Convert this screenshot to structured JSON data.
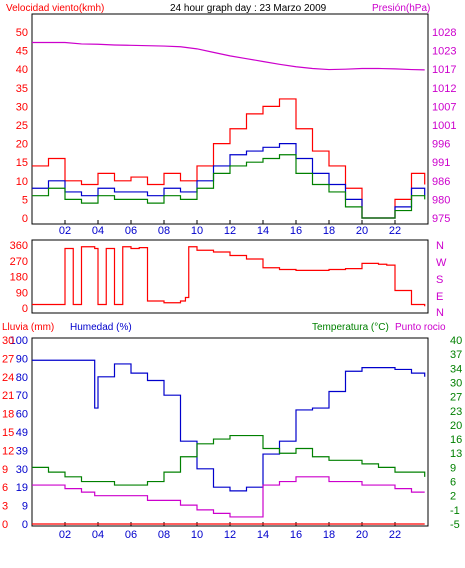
{
  "header": {
    "left_label": "Velocidad viento(kmh)",
    "center_title": "24 hour graph day : 23 Marzo 2009",
    "right_label": "Presión(hPa)"
  },
  "panel2": {
    "dir_labels": [
      "N",
      "W",
      "S",
      "E",
      "N"
    ]
  },
  "panel3": {
    "label_rain": "Lluvia (mm)",
    "label_humidity": "Humedad (%)",
    "label_temp": "Temperatura (°C)",
    "label_dew": "Punto rocio"
  },
  "colors": {
    "wind": "#ff0000",
    "wind_avg": "#0000cc",
    "wind_low": "#008000",
    "pressure": "#cc00cc",
    "direction": "#ff0000",
    "humidity": "#0000cc",
    "temperature": "#008000",
    "dewpoint": "#cc00cc",
    "rain": "#ff0000"
  },
  "chart_data": [
    {
      "type": "line",
      "title": "24 hour graph day : 23 Marzo 2009",
      "xlabel": "",
      "ylabel": "Velocidad viento(kmh)",
      "ylabel_right": "Presión(hPa)",
      "x_ticks": [
        "02",
        "04",
        "06",
        "08",
        "10",
        "12",
        "14",
        "16",
        "18",
        "20",
        "22"
      ],
      "xlim": [
        0,
        24
      ],
      "ylim": [
        0,
        50
      ],
      "y_ticks": [
        0,
        5,
        10,
        15,
        20,
        25,
        30,
        35,
        40,
        45,
        50
      ],
      "y2_ticks": [
        975,
        980,
        986,
        991,
        996,
        1001,
        1007,
        1012,
        1017,
        1023,
        1028
      ],
      "x": [
        0,
        1,
        2,
        3,
        4,
        5,
        6,
        7,
        8,
        9,
        10,
        11,
        12,
        13,
        14,
        15,
        16,
        17,
        18,
        19,
        20,
        21,
        22,
        23,
        23.8
      ],
      "series": [
        {
          "name": "gust",
          "axis": "left",
          "values": [
            14,
            16,
            10,
            9,
            12,
            10,
            11,
            9,
            12,
            10,
            14,
            20,
            24,
            28,
            30,
            32,
            24,
            18,
            14,
            8,
            0,
            0,
            5,
            12,
            9
          ]
        },
        {
          "name": "average",
          "axis": "left",
          "values": [
            8,
            10,
            7,
            6,
            8,
            7,
            7,
            6,
            8,
            7,
            10,
            14,
            17,
            18,
            19,
            20,
            16,
            12,
            9,
            5,
            0,
            0,
            3,
            8,
            6
          ]
        },
        {
          "name": "low",
          "axis": "left",
          "values": [
            6,
            8,
            5,
            4,
            6,
            5,
            5,
            4,
            6,
            5,
            8,
            12,
            14,
            15,
            16,
            17,
            12,
            9,
            7,
            3,
            0,
            0,
            2,
            6,
            5
          ]
        },
        {
          "name": "pressure",
          "axis": "right",
          "values": [
            1025,
            1025,
            1025,
            1024.6,
            1024.5,
            1024.3,
            1024.2,
            1024.1,
            1024,
            1023.8,
            1023.2,
            1022.2,
            1021.2,
            1020.4,
            1019.6,
            1018.8,
            1018.1,
            1017.6,
            1017.3,
            1017.4,
            1017.6,
            1017.6,
            1017.5,
            1017.3,
            1017.2
          ]
        }
      ]
    },
    {
      "type": "line",
      "ylabel": "",
      "ylim": [
        0,
        360
      ],
      "y_ticks": [
        0,
        90,
        180,
        270,
        360
      ],
      "x_ticks": [],
      "x": [
        0,
        1.8,
        2,
        2.3,
        2.5,
        3,
        3.8,
        4,
        4.5,
        5,
        5.5,
        6,
        6.5,
        7,
        8,
        9,
        9.3,
        9.5,
        10,
        11,
        12,
        13,
        14,
        15,
        16,
        17,
        18,
        19,
        20,
        21,
        21.5,
        22,
        23,
        23.8
      ],
      "series": [
        {
          "name": "direction",
          "values": [
            20,
            20,
            340,
            340,
            20,
            350,
            340,
            20,
            340,
            20,
            350,
            340,
            345,
            40,
            30,
            40,
            60,
            350,
            330,
            320,
            300,
            280,
            230,
            220,
            215,
            215,
            220,
            225,
            255,
            250,
            245,
            100,
            20,
            10
          ]
        }
      ]
    },
    {
      "type": "line",
      "ylabel": "Lluvia (mm) / Humedad (%)",
      "ylabel_right": "Temperatura (°C)",
      "ylim": [
        0,
        100
      ],
      "y_ticks": [
        0,
        9,
        19,
        30,
        39,
        49,
        60,
        70,
        80,
        90,
        100
      ],
      "y_ticks_outer": [
        0,
        3,
        6,
        9,
        12,
        15,
        18,
        21,
        24,
        27,
        30
      ],
      "y2_ticks": [
        -5,
        -1,
        2,
        6,
        9,
        13,
        16,
        20,
        23,
        27,
        30,
        34,
        37,
        40
      ],
      "x_ticks": [
        "02",
        "04",
        "06",
        "08",
        "10",
        "12",
        "14",
        "16",
        "18",
        "20",
        "22"
      ],
      "x": [
        0,
        1,
        2,
        3,
        3.8,
        4,
        5,
        6,
        7,
        8,
        9,
        10,
        11,
        12,
        13,
        14,
        15,
        16,
        17,
        18,
        19,
        20,
        21,
        22,
        23,
        23.8
      ],
      "series": [
        {
          "name": "Humedad (%)",
          "axis": "left",
          "values": [
            89,
            89,
            89,
            89,
            63,
            80,
            87,
            82,
            78,
            70,
            45,
            30,
            20,
            18,
            20,
            38,
            45,
            62,
            63,
            72,
            83,
            85,
            85,
            84,
            82,
            80
          ]
        },
        {
          "name": "Temperatura (°C)",
          "axis": "right",
          "values": [
            9,
            8,
            7,
            6,
            6,
            6,
            5,
            5,
            6,
            8,
            12,
            15,
            16,
            17,
            17,
            14,
            13,
            14,
            12,
            11,
            11,
            10,
            9,
            8,
            8,
            7
          ]
        },
        {
          "name": "Punto rocio",
          "axis": "right",
          "values": [
            5,
            5,
            4,
            3,
            2,
            2,
            2,
            2,
            1,
            1,
            0,
            -1,
            -2,
            -3,
            -3,
            5,
            6,
            7,
            7,
            6,
            6,
            5,
            5,
            4,
            3,
            3
          ]
        },
        {
          "name": "Lluvia (mm)",
          "axis": "left",
          "values": [
            0,
            0,
            0,
            0,
            0,
            0,
            0,
            0,
            0,
            0,
            0,
            0,
            0,
            0,
            0,
            0,
            0,
            0,
            0,
            0,
            0,
            0,
            0,
            0,
            0,
            0
          ]
        }
      ]
    }
  ]
}
